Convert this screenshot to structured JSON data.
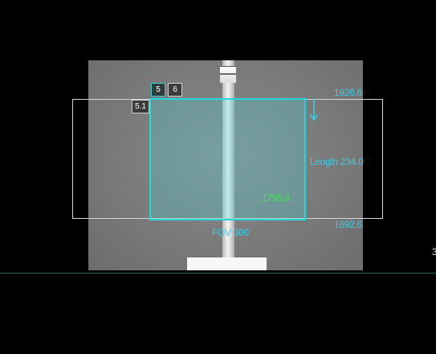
{
  "planning": {
    "series_tabs": [
      {
        "label": "5",
        "active": true
      },
      {
        "label": "6",
        "active": false
      },
      {
        "label": "5.1",
        "active": false
      }
    ],
    "top_position": "1926.6",
    "bottom_position": "1692.6",
    "length_label": "Length 234.0",
    "center_position": "1755.8",
    "fov_label": "FOV 300",
    "edge_text": "3",
    "scan_direction": "down-arrow-icon"
  },
  "colors": {
    "accent_cyan": "#27d6d6",
    "center_green": "#3ee64a",
    "background": "#000000"
  }
}
